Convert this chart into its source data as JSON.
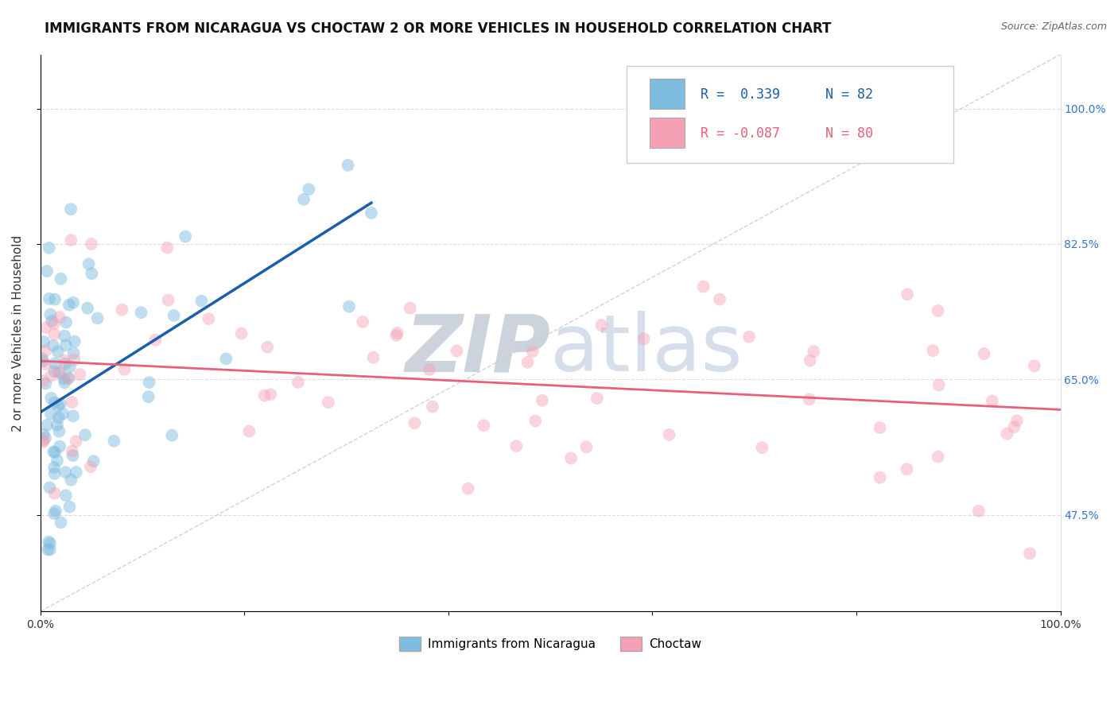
{
  "title": "IMMIGRANTS FROM NICARAGUA VS CHOCTAW 2 OR MORE VEHICLES IN HOUSEHOLD CORRELATION CHART",
  "source_text": "Source: ZipAtlas.com",
  "ylabel": "2 or more Vehicles in Household",
  "xlim": [
    0.0,
    100.0
  ],
  "ylim": [
    35.0,
    107.0
  ],
  "ytick_positions": [
    47.5,
    65.0,
    82.5,
    100.0
  ],
  "ytick_labels": [
    "47.5%",
    "65.0%",
    "82.5%",
    "100.0%"
  ],
  "label1": "Immigrants from Nicaragua",
  "label2": "Choctaw",
  "blue_color": "#7fbde0",
  "pink_color": "#f4a0b5",
  "blue_trend_color": "#1a5faa",
  "pink_trend_color": "#e8607a",
  "diag_color": "#c0c8d8",
  "watermark_zip_color": "#c8cfe0",
  "watermark_atlas_color": "#c0cce0",
  "background_color": "#ffffff",
  "title_fontsize": 12,
  "axis_label_fontsize": 11,
  "tick_fontsize": 10,
  "legend_fontsize": 12,
  "blue_r": 0.339,
  "blue_n": 82,
  "pink_r": -0.087,
  "pink_n": 80,
  "blue_trend_x": [
    0.05,
    20.0
  ],
  "blue_trend_y_start": 50.0,
  "blue_trend_y_end": 82.0,
  "pink_trend_x": [
    0.5,
    98.0
  ],
  "pink_trend_y_start": 65.5,
  "pink_trend_y_end": 63.0
}
